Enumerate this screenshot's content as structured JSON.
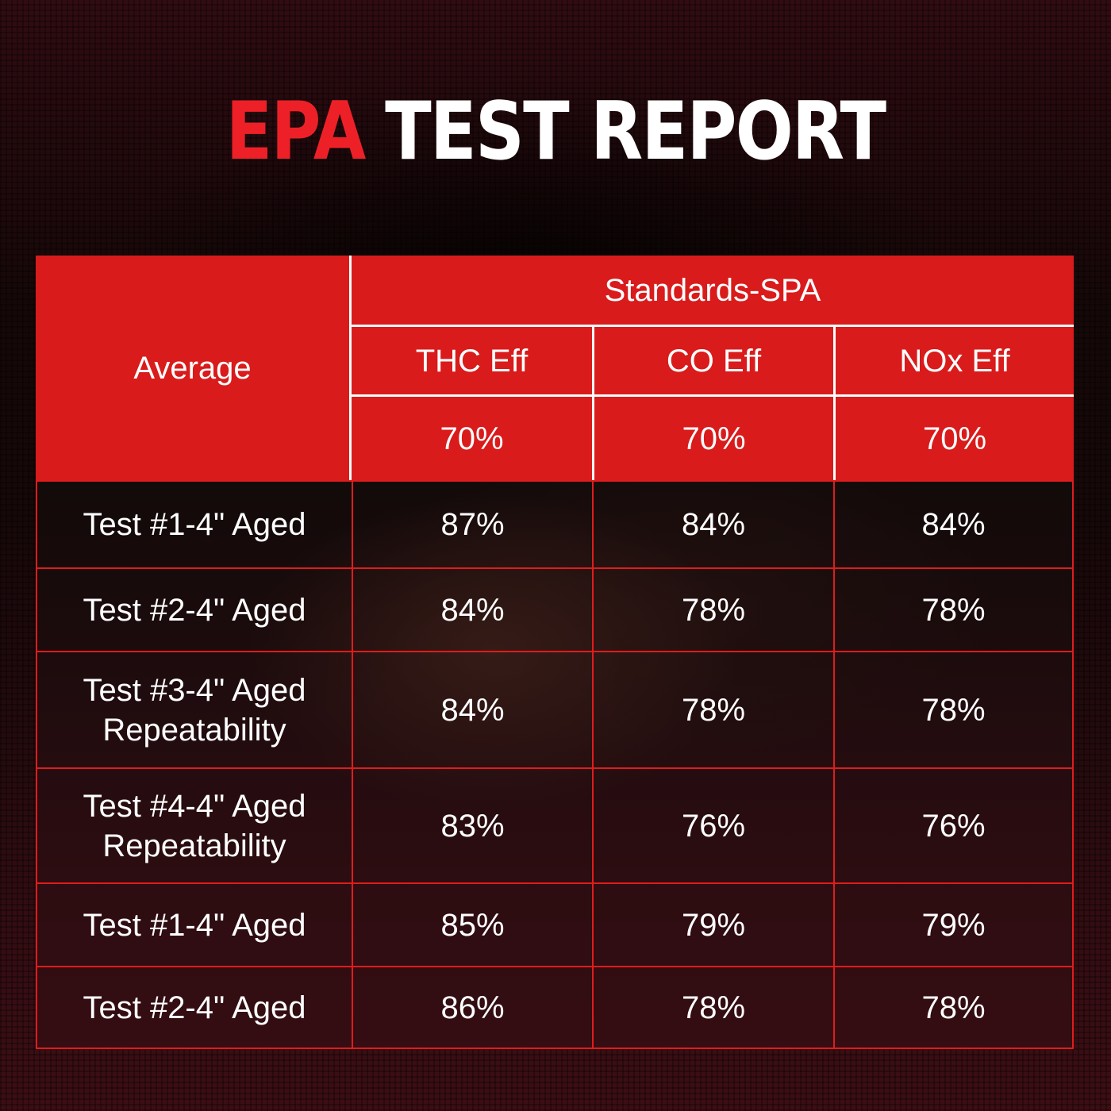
{
  "title": {
    "accent": "EPA",
    "rest": "TEST REPORT"
  },
  "chart_data": {
    "type": "table",
    "title": "EPA TEST REPORT",
    "corner_label": "Average",
    "group_header": "Standards-SPA",
    "columns": [
      "THC Eff",
      "CO Eff",
      "NOx Eff"
    ],
    "standard_limits": [
      "70%",
      "70%",
      "70%"
    ],
    "rows": [
      {
        "label": "Test #1-4\" Aged",
        "values": [
          "87%",
          "84%",
          "84%"
        ]
      },
      {
        "label": "Test #2-4\" Aged",
        "values": [
          "84%",
          "78%",
          "78%"
        ]
      },
      {
        "label": "Test #3-4\" Aged Repeatability",
        "values": [
          "84%",
          "78%",
          "78%"
        ]
      },
      {
        "label": "Test #4-4\" Aged Repeatability",
        "values": [
          "83%",
          "76%",
          "76%"
        ]
      },
      {
        "label": "Test #1-4\" Aged",
        "values": [
          "85%",
          "79%",
          "79%"
        ]
      },
      {
        "label": "Test #2-4\" Aged",
        "values": [
          "86%",
          "78%",
          "78%"
        ]
      }
    ]
  },
  "colors": {
    "header_red": "#d91b1b",
    "border_red": "#e01c1c",
    "accent_red": "#ee2027",
    "text_white": "#ffffff",
    "bg_maroon": "#2c0b10"
  }
}
